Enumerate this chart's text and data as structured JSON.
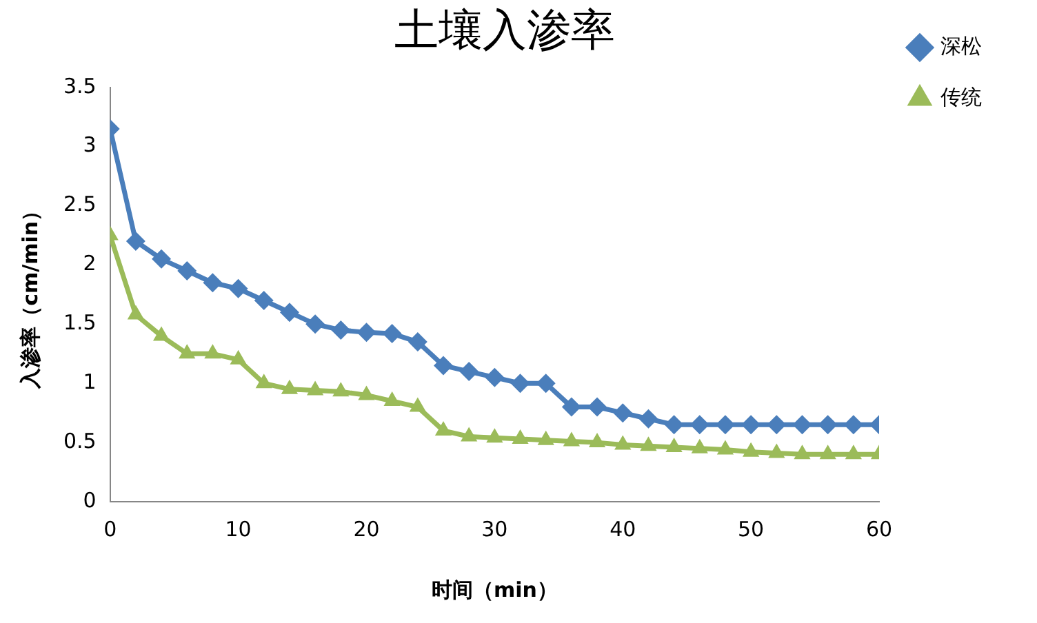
{
  "chart_data": {
    "type": "line",
    "title": "土壤入渗率",
    "xlabel": "时间（min）",
    "ylabel": "入渗率（cm/min）",
    "x": [
      0,
      2,
      4,
      6,
      8,
      10,
      12,
      14,
      16,
      18,
      20,
      22,
      24,
      26,
      28,
      30,
      32,
      34,
      36,
      38,
      40,
      42,
      44,
      46,
      48,
      50,
      52,
      54,
      56,
      58,
      60
    ],
    "series": [
      {
        "name": "深松",
        "color": "#4a7ebb",
        "marker": "diamond",
        "values": [
          3.15,
          2.2,
          2.05,
          1.95,
          1.85,
          1.8,
          1.7,
          1.6,
          1.5,
          1.45,
          1.43,
          1.42,
          1.35,
          1.15,
          1.1,
          1.05,
          1.0,
          1.0,
          0.8,
          0.8,
          0.75,
          0.7,
          0.65,
          0.65,
          0.65,
          0.65,
          0.65,
          0.65,
          0.65,
          0.65,
          0.65
        ]
      },
      {
        "name": "传统",
        "color": "#9bbb59",
        "marker": "triangle",
        "values": [
          2.25,
          1.58,
          1.4,
          1.25,
          1.25,
          1.2,
          1.0,
          0.95,
          0.94,
          0.93,
          0.9,
          0.85,
          0.8,
          0.6,
          0.55,
          0.54,
          0.53,
          0.52,
          0.51,
          0.5,
          0.48,
          0.47,
          0.46,
          0.45,
          0.44,
          0.42,
          0.41,
          0.4,
          0.4,
          0.4,
          0.4
        ]
      }
    ],
    "xlim": [
      0,
      60
    ],
    "xticks": [
      0,
      10,
      20,
      30,
      40,
      50,
      60
    ],
    "ylim": [
      0,
      3.5
    ],
    "yticks": [
      0,
      0.5,
      1,
      1.5,
      2,
      2.5,
      3,
      3.5
    ],
    "grid": false,
    "legend": "top right",
    "line_style": "solid"
  }
}
